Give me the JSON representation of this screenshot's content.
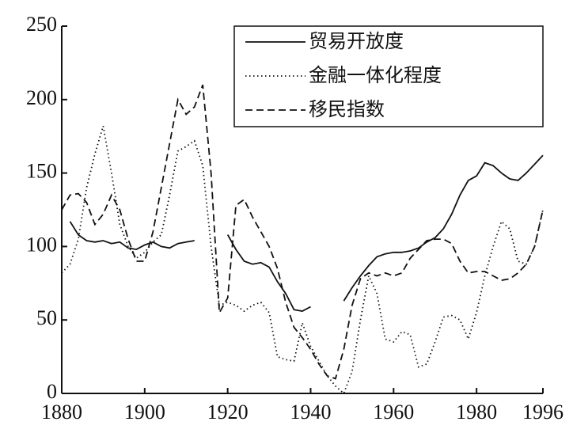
{
  "chart_data": {
    "type": "line",
    "x": [
      1880,
      1882,
      1884,
      1886,
      1888,
      1890,
      1892,
      1894,
      1896,
      1898,
      1900,
      1902,
      1904,
      1906,
      1908,
      1910,
      1912,
      1914,
      1916,
      1918,
      1920,
      1922,
      1924,
      1926,
      1928,
      1930,
      1932,
      1934,
      1936,
      1938,
      1940,
      1942,
      1944,
      1946,
      1948,
      1950,
      1952,
      1954,
      1956,
      1958,
      1960,
      1962,
      1964,
      1966,
      1968,
      1970,
      1972,
      1974,
      1976,
      1978,
      1980,
      1982,
      1984,
      1986,
      1988,
      1990,
      1992,
      1994,
      1996
    ],
    "series": [
      {
        "name": "贸易开放度",
        "color": "#111111",
        "line_style": "solid",
        "values": [
          null,
          117,
          108,
          104,
          103,
          104,
          102,
          103,
          99,
          98,
          101,
          103,
          100,
          99,
          102,
          103,
          104,
          null,
          null,
          null,
          108,
          98,
          90,
          88,
          89,
          86,
          76,
          68,
          57,
          56,
          59,
          null,
          null,
          null,
          63,
          72,
          80,
          87,
          93,
          95,
          96,
          96,
          97,
          99,
          103,
          106,
          112,
          122,
          135,
          145,
          148,
          157,
          155,
          150,
          146,
          145,
          150,
          156,
          162
        ]
      },
      {
        "name": "金融一体化程度",
        "color": "#111111",
        "line_style": "dotted",
        "values": [
          82,
          88,
          105,
          140,
          163,
          182,
          150,
          115,
          100,
          92,
          96,
          103,
          108,
          135,
          165,
          168,
          172,
          155,
          100,
          60,
          62,
          60,
          56,
          60,
          62,
          55,
          25,
          23,
          22,
          48,
          32,
          22,
          12,
          5,
          0,
          15,
          50,
          80,
          68,
          37,
          35,
          42,
          40,
          18,
          20,
          35,
          52,
          53,
          50,
          37,
          55,
          80,
          100,
          117,
          112,
          90,
          88,
          100,
          125
        ]
      },
      {
        "name": "移民指数",
        "color": "#111111",
        "line_style": "dashed",
        "values": [
          125,
          135,
          136,
          130,
          115,
          122,
          135,
          125,
          105,
          90,
          90,
          110,
          140,
          170,
          200,
          190,
          195,
          210,
          150,
          55,
          65,
          128,
          132,
          120,
          110,
          100,
          85,
          62,
          45,
          38,
          30,
          20,
          12,
          10,
          30,
          60,
          78,
          82,
          80,
          82,
          80,
          82,
          92,
          98,
          104,
          105,
          105,
          102,
          90,
          82,
          83,
          83,
          80,
          77,
          78,
          82,
          88,
          100,
          125
        ]
      }
    ],
    "xlim": [
      1880,
      1996
    ],
    "xticks": [
      1880,
      1900,
      1920,
      1940,
      1960,
      1980,
      1996
    ],
    "ylim": [
      0,
      250
    ],
    "yticks": [
      0,
      50,
      100,
      150,
      200,
      250
    ],
    "legend": "top-right"
  }
}
